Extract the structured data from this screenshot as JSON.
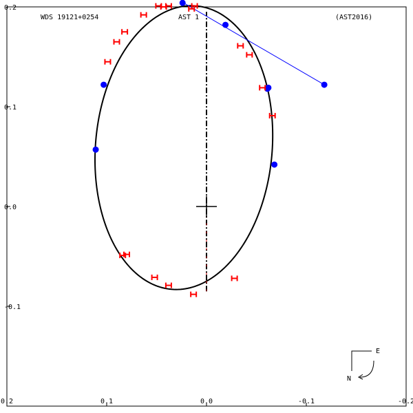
{
  "header": {
    "wds": "WDS 19121+0254",
    "discoverer": "AST   1",
    "reference": "(AST2016)"
  },
  "compass": {
    "east": "E",
    "north": "N"
  },
  "chart_data": {
    "type": "scatter",
    "title": "",
    "xlabel": "",
    "ylabel": "",
    "xlim": [
      0.2,
      -0.2
    ],
    "ylim": [
      -0.2,
      0.2
    ],
    "x_ticks": [
      0.2,
      0.1,
      0.0,
      -0.1,
      -0.2
    ],
    "x_tick_labels": [
      "0.2",
      "0.1",
      "0.0",
      "-0.1",
      "-0.2"
    ],
    "y_ticks": [
      0.2,
      0.1,
      0.0,
      -0.1
    ],
    "y_tick_labels": [
      "0.2",
      "0.1",
      "0.0",
      "-0.1"
    ],
    "orbit": {
      "center": [
        0.0227,
        0.059
      ],
      "semi_axis_1": 0.0885,
      "semi_axis_2": 0.1425,
      "tilt_deg": 5,
      "color": "#000000"
    },
    "primary": [
      0.0,
      0.0
    ],
    "line_of_nodes": {
      "from": [
        0.0,
        -0.085
      ],
      "to": [
        0.0,
        0.195
      ],
      "color": "#000000",
      "dash_color": "#cc0000"
    },
    "blue_connector": {
      "from": [
        -0.118,
        0.122
      ],
      "to": [
        0.023,
        0.204
      ],
      "color": "#0000ff"
    },
    "series": [
      {
        "marker": "circle",
        "color": "#0000ff",
        "points": [
          [
            0.024,
            0.204
          ],
          [
            -0.019,
            0.182
          ],
          [
            -0.118,
            0.122
          ],
          [
            -0.062,
            0.119
          ],
          [
            -0.061,
            0.118
          ],
          [
            -0.068,
            0.042
          ],
          [
            0.103,
            0.122
          ],
          [
            0.111,
            0.057
          ]
        ]
      },
      {
        "marker": "H",
        "color": "#ff0000",
        "points": [
          [
            0.012,
            0.201
          ],
          [
            0.015,
            0.198
          ],
          [
            0.038,
            0.201
          ],
          [
            0.043,
            0.2
          ],
          [
            0.048,
            0.201
          ],
          [
            0.063,
            0.192
          ],
          [
            0.082,
            0.175
          ],
          [
            0.09,
            0.165
          ],
          [
            0.099,
            0.145
          ],
          [
            -0.034,
            0.161
          ],
          [
            -0.043,
            0.152
          ],
          [
            -0.056,
            0.119
          ],
          [
            -0.066,
            0.091
          ],
          [
            0.08,
            -0.048
          ],
          [
            0.084,
            -0.049
          ],
          [
            0.052,
            -0.071
          ],
          [
            0.038,
            -0.079
          ],
          [
            0.013,
            -0.088
          ],
          [
            -0.028,
            -0.072
          ]
        ]
      }
    ]
  }
}
